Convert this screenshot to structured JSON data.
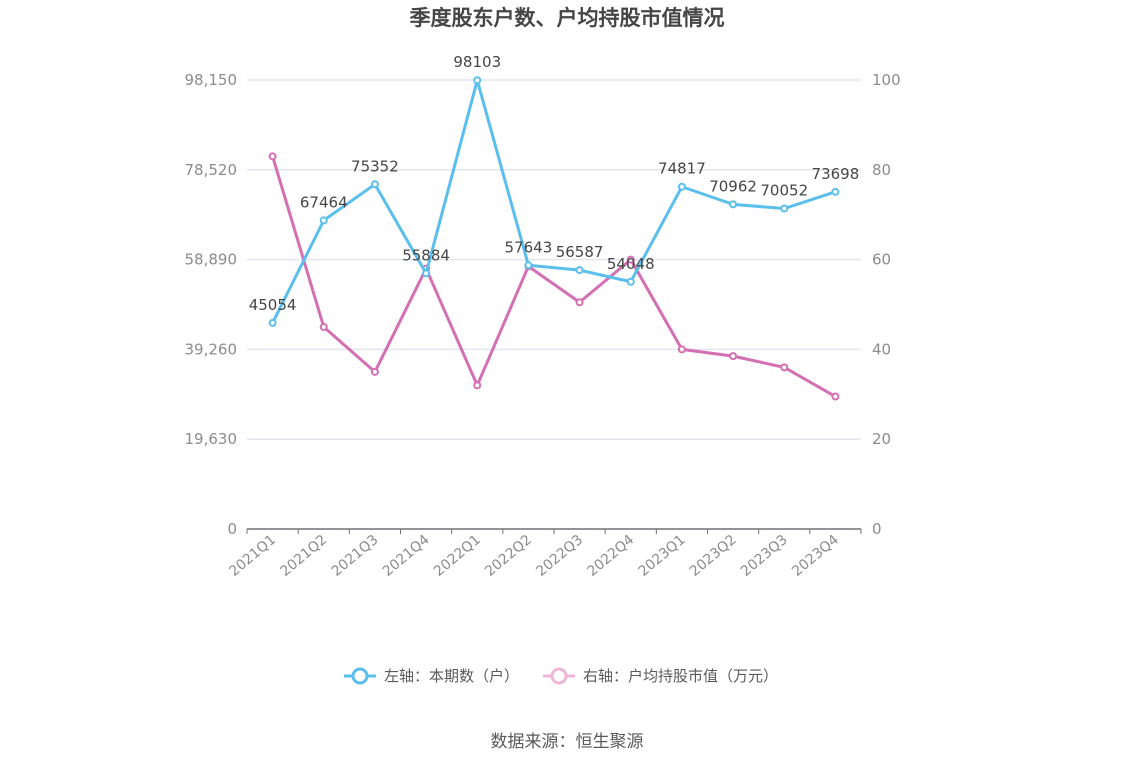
{
  "chart_data": {
    "type": "line",
    "title": "季度股东户数、户均持股市值情况",
    "categories": [
      "2021Q1",
      "2021Q2",
      "2021Q3",
      "2021Q4",
      "2022Q1",
      "2022Q2",
      "2022Q3",
      "2022Q4",
      "2023Q1",
      "2023Q2",
      "2023Q3",
      "2023Q4"
    ],
    "left_axis": {
      "min": 0,
      "max": 98150,
      "ticks": [
        "0",
        "19,630",
        "39,260",
        "58,890",
        "78,520",
        "98,150"
      ]
    },
    "right_axis": {
      "min": 0,
      "max": 100,
      "ticks": [
        "0",
        "20",
        "40",
        "60",
        "80",
        "100"
      ]
    },
    "series": [
      {
        "name": "左轴：本期数（户）",
        "axis": "left",
        "color": "#5bbfee",
        "values": [
          45054,
          67464,
          75352,
          55884,
          98103,
          57643,
          56587,
          54048,
          74817,
          70962,
          70052,
          73698
        ],
        "labels": [
          "45054",
          "67464",
          "75352",
          "55884",
          "98103",
          "57643",
          "56587",
          "54048",
          "74817",
          "70962",
          "70052",
          "73698"
        ]
      },
      {
        "name": "右轴：户均持股市值（万元）",
        "axis": "right",
        "color": "#d46fb4",
        "values": [
          83,
          45,
          35,
          58,
          32,
          58.5,
          50.5,
          60,
          40,
          38.5,
          36,
          29.5
        ]
      }
    ],
    "grid": true,
    "legend": "bottom-center"
  },
  "source": "数据来源：恒生聚源"
}
